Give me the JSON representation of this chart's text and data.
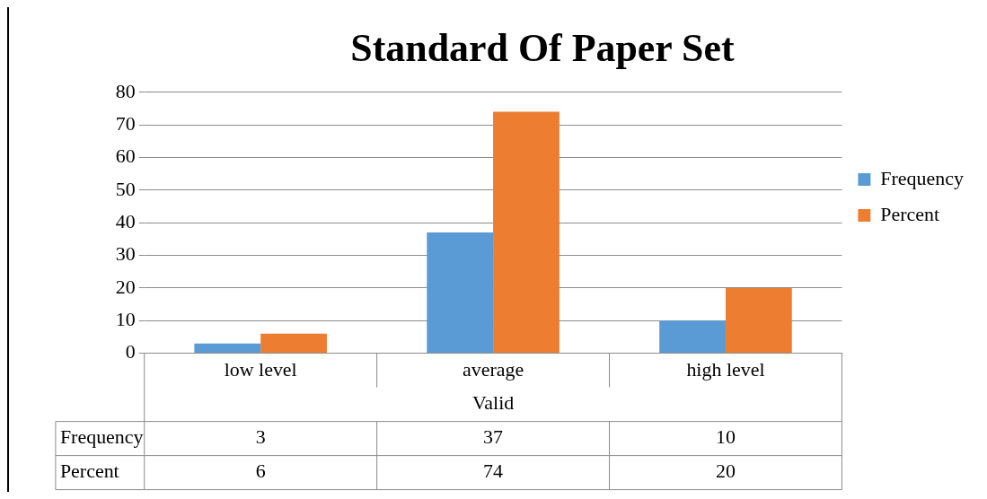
{
  "chart_data": {
    "type": "bar",
    "title": "Standard Of Paper Set",
    "xlabel": "Valid",
    "categories": [
      "low level",
      "average",
      "high level"
    ],
    "series": [
      {
        "name": "Frequency",
        "color": "#5b9bd5",
        "values": [
          3,
          37,
          10
        ]
      },
      {
        "name": "Percent",
        "color": "#ed7d31",
        "values": [
          6,
          74,
          20
        ]
      }
    ],
    "ylim": [
      0,
      80
    ],
    "yticks": [
      0,
      10,
      20,
      30,
      40,
      50,
      60,
      70,
      80
    ],
    "grid": "y",
    "legend": "right",
    "data_labels": true
  }
}
